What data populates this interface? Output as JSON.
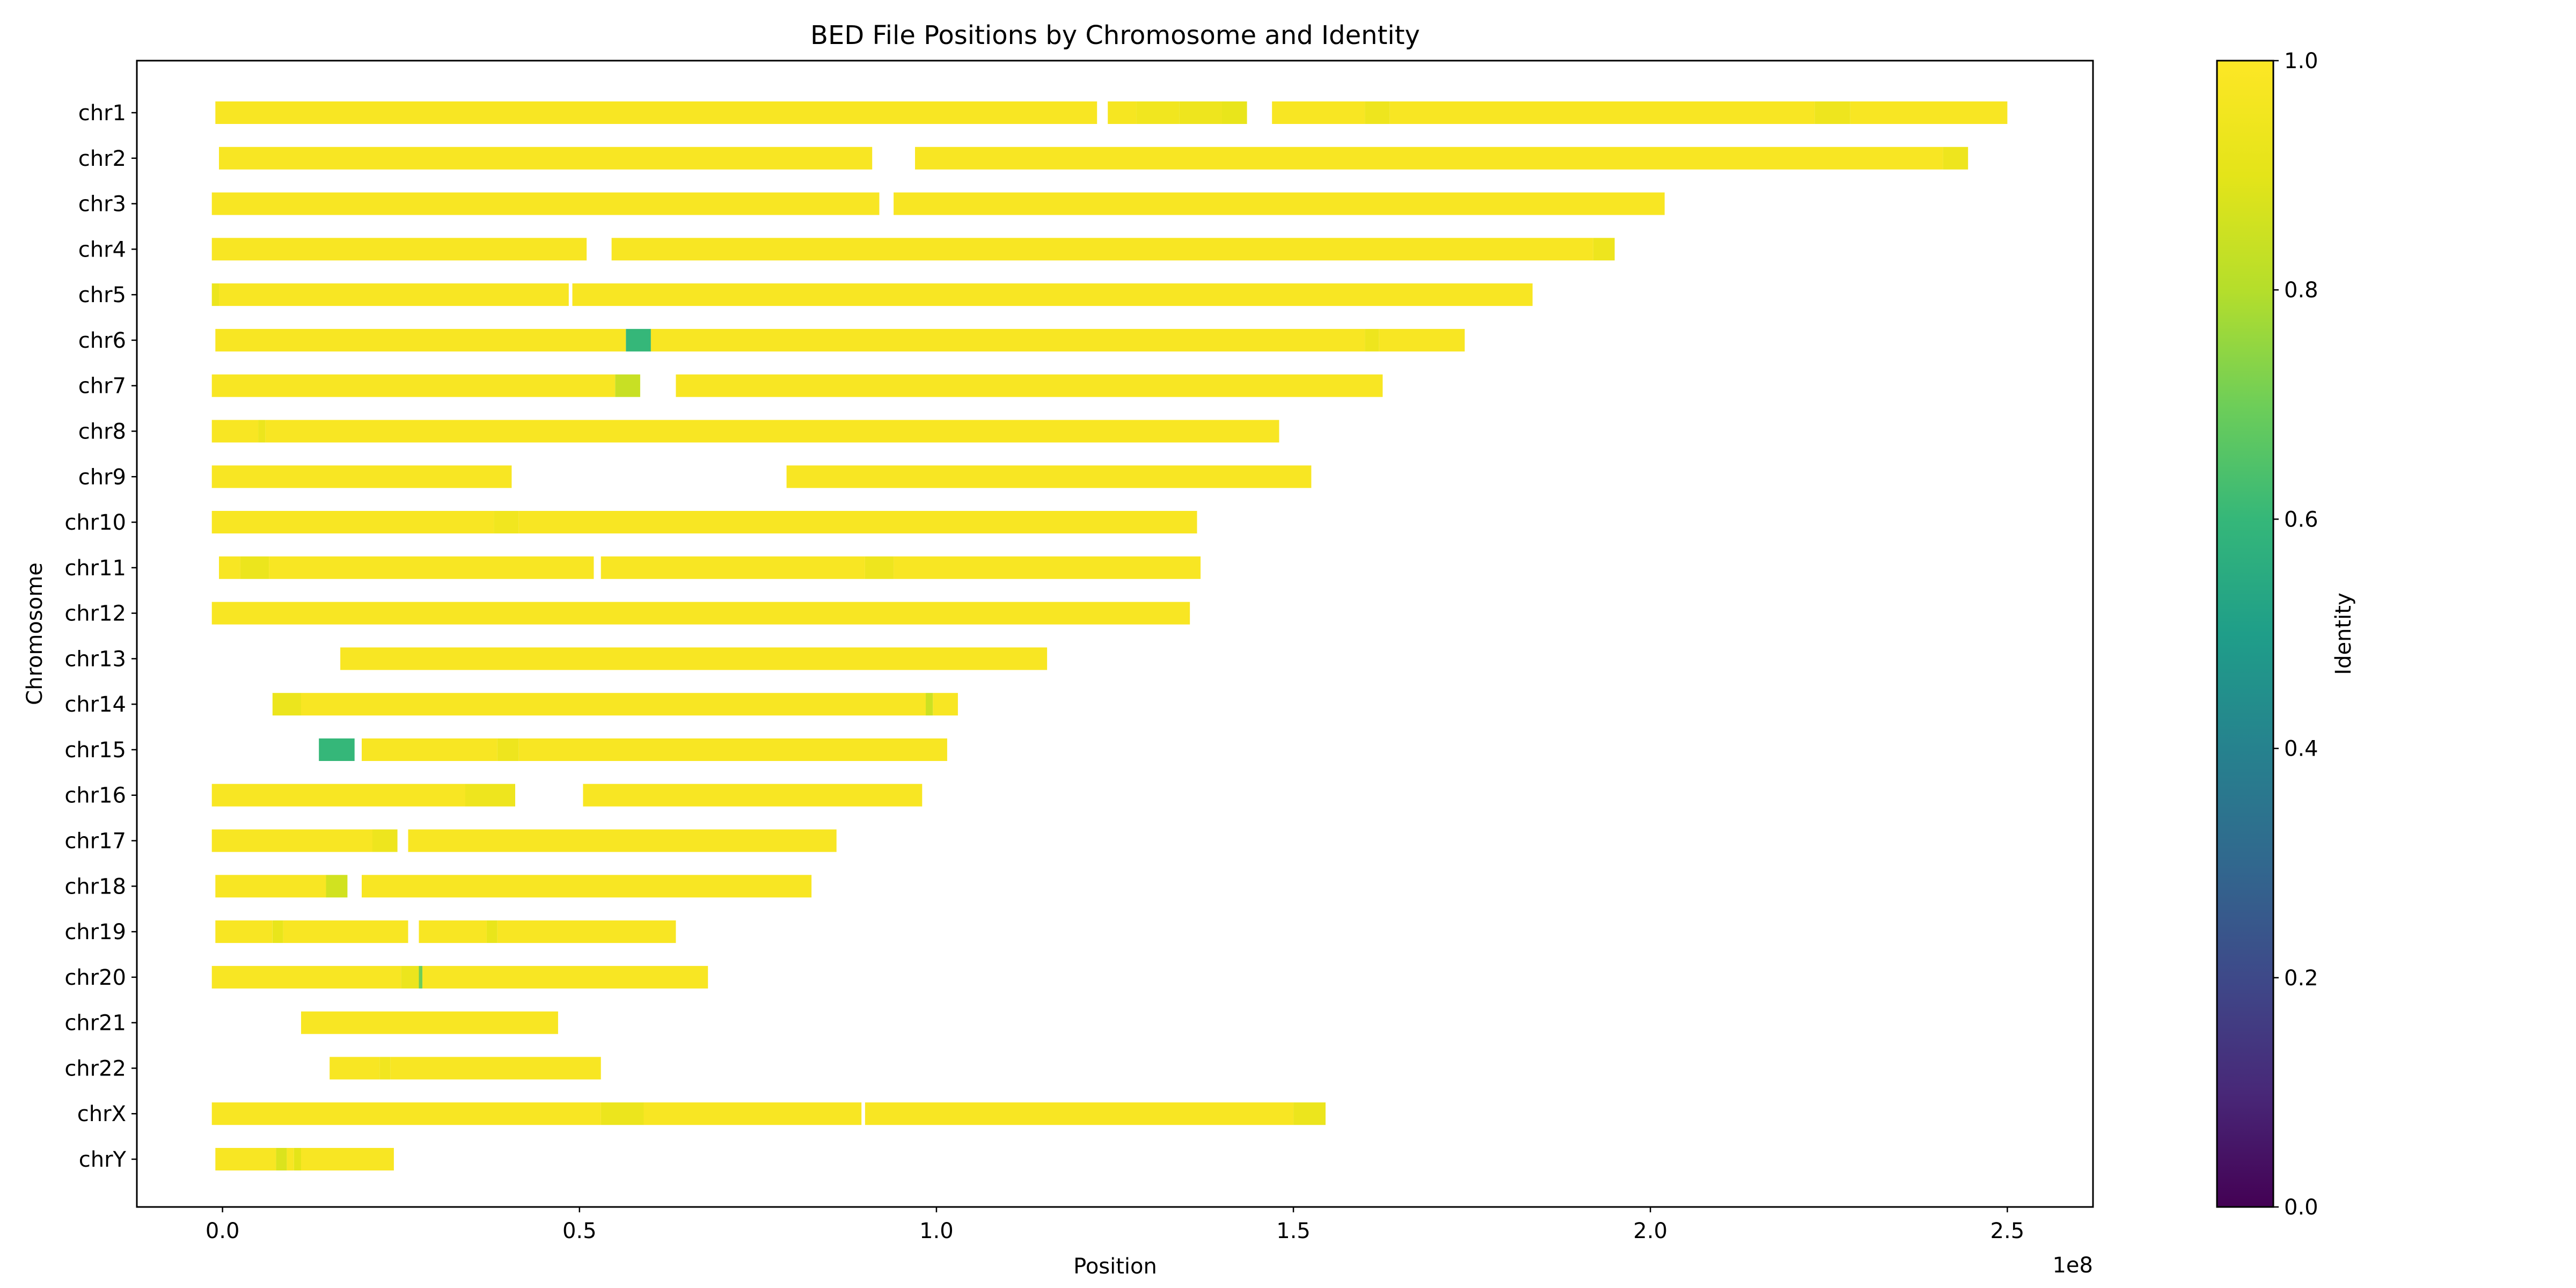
{
  "chart_data": {
    "type": "heatmap",
    "title": "BED File Positions by Chromosome and Identity",
    "xlabel": "Position",
    "ylabel": "Chromosome",
    "x_offset_label": "1e8",
    "xlim": [
      -12000000.0,
      262000000.0
    ],
    "x_ticks": [
      0,
      50000000.0,
      100000000.0,
      150000000.0,
      200000000.0,
      250000000.0
    ],
    "x_tick_labels": [
      "0.0",
      "0.5",
      "1.0",
      "1.5",
      "2.0",
      "2.5"
    ],
    "grid": false,
    "colorbar": {
      "label": "Identity",
      "range": [
        0.0,
        1.0
      ],
      "ticks": [
        0.0,
        0.2,
        0.4,
        0.6,
        0.8,
        1.0
      ],
      "tick_labels": [
        "0.0",
        "0.2",
        "0.4",
        "0.6",
        "0.8",
        "1.0"
      ],
      "colormap": "viridis"
    },
    "chromosomes": [
      {
        "name": "chr1",
        "segments": [
          [
            -1000000,
            122500000,
            0.98
          ],
          [
            124000000,
            128000000,
            0.97
          ],
          [
            128000000,
            134000000,
            0.95
          ],
          [
            134000000,
            140000000,
            0.94
          ],
          [
            140000000,
            143500000,
            0.92
          ],
          [
            147000000,
            160000000,
            0.98
          ],
          [
            160000000,
            163500000,
            0.94
          ],
          [
            163500000,
            223000000,
            0.98
          ],
          [
            223000000,
            228000000,
            0.94
          ],
          [
            228000000,
            250000000,
            0.98
          ]
        ]
      },
      {
        "name": "chr2",
        "segments": [
          [
            -500000,
            91000000,
            0.98
          ],
          [
            97000000,
            241000000,
            0.98
          ],
          [
            241000000,
            244500000,
            0.94
          ]
        ]
      },
      {
        "name": "chr3",
        "segments": [
          [
            -1500000,
            92000000,
            0.98
          ],
          [
            94000000,
            202000000,
            0.98
          ]
        ]
      },
      {
        "name": "chr4",
        "segments": [
          [
            -1500000,
            51000000,
            0.98
          ],
          [
            54500000,
            192000000,
            0.98
          ],
          [
            192000000,
            195000000,
            0.94
          ]
        ]
      },
      {
        "name": "chr5",
        "segments": [
          [
            -1500000,
            -500000,
            0.93
          ],
          [
            -500000,
            48500000,
            0.98
          ],
          [
            49000000,
            183500000,
            0.98
          ]
        ]
      },
      {
        "name": "chr6",
        "segments": [
          [
            -1000000,
            56500000,
            0.98
          ],
          [
            56500000,
            60000000,
            0.6
          ],
          [
            60000000,
            160000000,
            0.98
          ],
          [
            160000000,
            162000000,
            0.94
          ],
          [
            162000000,
            174000000,
            0.98
          ]
        ]
      },
      {
        "name": "chr7",
        "segments": [
          [
            -1500000,
            55000000,
            0.98
          ],
          [
            55000000,
            58500000,
            0.84
          ],
          [
            63500000,
            162500000,
            0.98
          ]
        ]
      },
      {
        "name": "chr8",
        "segments": [
          [
            -1500000,
            5000000,
            0.98
          ],
          [
            5000000,
            6000000,
            0.93
          ],
          [
            6000000,
            148000000,
            0.98
          ]
        ]
      },
      {
        "name": "chr9",
        "segments": [
          [
            -1500000,
            40500000,
            0.98
          ],
          [
            79000000,
            152500000,
            0.98
          ]
        ]
      },
      {
        "name": "chr10",
        "segments": [
          [
            -1500000,
            38000000,
            0.98
          ],
          [
            38000000,
            41500000,
            0.95
          ],
          [
            41500000,
            136500000,
            0.98
          ]
        ]
      },
      {
        "name": "chr11",
        "segments": [
          [
            -500000,
            2500000,
            0.98
          ],
          [
            2500000,
            6500000,
            0.93
          ],
          [
            6500000,
            52000000,
            0.98
          ],
          [
            53000000,
            90000000,
            0.98
          ],
          [
            90000000,
            94000000,
            0.94
          ],
          [
            94000000,
            137000000,
            0.98
          ]
        ]
      },
      {
        "name": "chr12",
        "segments": [
          [
            -1500000,
            135500000,
            0.98
          ]
        ]
      },
      {
        "name": "chr13",
        "segments": [
          [
            16500000,
            115500000,
            0.98
          ]
        ]
      },
      {
        "name": "chr14",
        "segments": [
          [
            7000000,
            11000000,
            0.93
          ],
          [
            11000000,
            98500000,
            0.98
          ],
          [
            98500000,
            99500000,
            0.85
          ],
          [
            99500000,
            103000000,
            0.98
          ]
        ]
      },
      {
        "name": "chr15",
        "segments": [
          [
            13500000,
            18500000,
            0.6
          ],
          [
            19500000,
            38500000,
            0.98
          ],
          [
            38500000,
            41500000,
            0.94
          ],
          [
            41500000,
            101500000,
            0.98
          ]
        ]
      },
      {
        "name": "chr16",
        "segments": [
          [
            -1500000,
            34000000,
            0.98
          ],
          [
            34000000,
            41000000,
            0.94
          ],
          [
            50500000,
            98000000,
            0.98
          ]
        ]
      },
      {
        "name": "chr17",
        "segments": [
          [
            -1500000,
            21000000,
            0.98
          ],
          [
            21000000,
            24500000,
            0.94
          ],
          [
            26000000,
            86000000,
            0.98
          ]
        ]
      },
      {
        "name": "chr18",
        "segments": [
          [
            -1000000,
            14500000,
            0.98
          ],
          [
            14500000,
            17500000,
            0.86
          ],
          [
            19500000,
            82500000,
            0.98
          ]
        ]
      },
      {
        "name": "chr19",
        "segments": [
          [
            -1000000,
            7000000,
            0.98
          ],
          [
            7000000,
            8500000,
            0.92
          ],
          [
            8500000,
            26000000,
            0.98
          ],
          [
            27500000,
            37000000,
            0.98
          ],
          [
            37000000,
            38500000,
            0.92
          ],
          [
            38500000,
            63500000,
            0.98
          ]
        ]
      },
      {
        "name": "chr20",
        "segments": [
          [
            -1500000,
            25000000,
            0.98
          ],
          [
            25000000,
            27500000,
            0.93
          ],
          [
            27500000,
            28000000,
            0.7
          ],
          [
            28000000,
            68000000,
            0.98
          ]
        ]
      },
      {
        "name": "chr21",
        "segments": [
          [
            11000000,
            47000000,
            0.98
          ]
        ]
      },
      {
        "name": "chr22",
        "segments": [
          [
            15000000,
            22000000,
            0.98
          ],
          [
            22000000,
            23500000,
            0.95
          ],
          [
            23500000,
            53000000,
            0.98
          ]
        ]
      },
      {
        "name": "chrX",
        "segments": [
          [
            -1500000,
            53000000,
            0.98
          ],
          [
            53000000,
            59000000,
            0.93
          ],
          [
            59000000,
            89500000,
            0.98
          ],
          [
            90000000,
            150000000,
            0.98
          ],
          [
            150000000,
            154500000,
            0.93
          ]
        ]
      },
      {
        "name": "chrY",
        "segments": [
          [
            -1000000,
            7500000,
            0.98
          ],
          [
            7500000,
            9000000,
            0.88
          ],
          [
            9000000,
            10000000,
            0.98
          ],
          [
            10000000,
            11000000,
            0.9
          ],
          [
            11000000,
            24000000,
            0.98
          ]
        ]
      }
    ]
  }
}
